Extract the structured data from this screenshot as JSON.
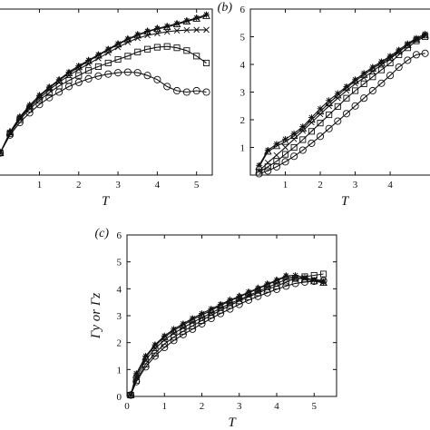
{
  "chart_data": [
    {
      "id": "a",
      "type": "line",
      "panel_label": "",
      "xlabel": "T",
      "ylabel": "",
      "xlim": [
        0,
        5.4
      ],
      "ylim": [
        0,
        6
      ],
      "xticks": [
        "1",
        "2",
        "3",
        "4",
        "5"
      ],
      "yticks": [],
      "grid": false,
      "series": [
        {
          "marker": "circle",
          "x": [
            0,
            0.25,
            0.5,
            0.75,
            1.0,
            1.25,
            1.5,
            1.75,
            2.0,
            2.25,
            2.5,
            2.75,
            3.0,
            3.25,
            3.5,
            3.75,
            4.0,
            4.25,
            4.5,
            4.75,
            5.0,
            5.25
          ],
          "y": [
            0.8,
            1.45,
            1.9,
            2.25,
            2.55,
            2.8,
            3.0,
            3.2,
            3.35,
            3.48,
            3.58,
            3.65,
            3.7,
            3.72,
            3.7,
            3.6,
            3.45,
            3.2,
            3.05,
            3.0,
            3.05,
            3.0
          ]
        },
        {
          "marker": "square",
          "x": [
            0,
            0.25,
            0.5,
            0.75,
            1.0,
            1.25,
            1.5,
            1.75,
            2.0,
            2.25,
            2.5,
            2.75,
            3.0,
            3.25,
            3.5,
            3.75,
            4.0,
            4.25,
            4.5,
            4.75,
            5.0,
            5.25
          ],
          "y": [
            0.8,
            1.5,
            2.0,
            2.38,
            2.7,
            2.98,
            3.22,
            3.42,
            3.6,
            3.78,
            3.92,
            4.05,
            4.18,
            4.3,
            4.45,
            4.55,
            4.62,
            4.65,
            4.6,
            4.5,
            4.3,
            4.05
          ]
        },
        {
          "marker": "cross",
          "x": [
            0,
            0.25,
            0.5,
            0.75,
            1.0,
            1.25,
            1.5,
            1.75,
            2.0,
            2.25,
            2.5,
            2.75,
            3.0,
            3.25,
            3.5,
            3.75,
            4.0,
            4.25,
            4.5,
            4.75,
            5.0,
            5.25
          ],
          "y": [
            0.8,
            1.52,
            2.05,
            2.45,
            2.78,
            3.08,
            3.35,
            3.6,
            3.82,
            4.02,
            4.22,
            4.42,
            4.62,
            4.8,
            4.95,
            5.05,
            5.12,
            5.18,
            5.22,
            5.24,
            5.25,
            5.25
          ]
        },
        {
          "marker": "triangle",
          "x": [
            0,
            0.25,
            0.5,
            0.75,
            1.0,
            1.25,
            1.5,
            1.75,
            2.0,
            2.25,
            2.5,
            2.75,
            3.0,
            3.25,
            3.5,
            3.75,
            4.0,
            4.25,
            4.5,
            4.75,
            5.0,
            5.25
          ],
          "y": [
            0.8,
            1.55,
            2.08,
            2.5,
            2.85,
            3.15,
            3.42,
            3.68,
            3.9,
            4.12,
            4.32,
            4.52,
            4.72,
            4.9,
            5.05,
            5.18,
            5.28,
            5.35,
            5.45,
            5.55,
            5.65,
            5.75
          ]
        },
        {
          "marker": "star",
          "x": [
            0,
            0.25,
            0.5,
            0.75,
            1.0,
            1.25,
            1.5,
            1.75,
            2.0,
            2.25,
            2.5,
            2.75,
            3.0,
            3.25,
            3.5,
            3.75,
            4.0,
            4.25,
            4.5,
            4.75,
            5.0,
            5.25
          ],
          "y": [
            0.8,
            1.55,
            2.1,
            2.52,
            2.88,
            3.18,
            3.45,
            3.72,
            3.95,
            4.15,
            4.35,
            4.55,
            4.75,
            4.92,
            5.08,
            5.2,
            5.3,
            5.38,
            5.48,
            5.58,
            5.68,
            5.8
          ]
        }
      ]
    },
    {
      "id": "b",
      "type": "line",
      "panel_label": "(b)",
      "xlabel": "T",
      "ylabel": "",
      "xlim": [
        0,
        5.4
      ],
      "ylim": [
        0,
        6
      ],
      "xticks": [
        "1",
        "2",
        "3",
        "4"
      ],
      "yticks": [
        "1",
        "2",
        "3",
        "4",
        "5",
        "6"
      ],
      "grid": false,
      "series": [
        {
          "marker": "circle",
          "x": [
            0.25,
            0.5,
            0.75,
            1.0,
            1.25,
            1.5,
            1.75,
            2.0,
            2.25,
            2.5,
            2.75,
            3.0,
            3.25,
            3.5,
            3.75,
            4.0,
            4.25,
            4.5,
            4.75,
            5.0
          ],
          "y": [
            0.05,
            0.15,
            0.3,
            0.48,
            0.68,
            0.9,
            1.15,
            1.4,
            1.68,
            1.95,
            2.22,
            2.5,
            2.78,
            3.05,
            3.32,
            3.6,
            3.9,
            4.15,
            4.35,
            4.4
          ]
        },
        {
          "marker": "square",
          "x": [
            0.25,
            0.5,
            0.75,
            1.0,
            1.25,
            1.5,
            1.75,
            2.0,
            2.25,
            2.5,
            2.75,
            3.0,
            3.25,
            3.5,
            3.75,
            4.0,
            4.25,
            4.5,
            4.75,
            5.0
          ],
          "y": [
            0.1,
            0.3,
            0.5,
            0.75,
            1.0,
            1.28,
            1.58,
            1.88,
            2.18,
            2.48,
            2.78,
            3.05,
            3.3,
            3.55,
            3.8,
            4.05,
            4.35,
            4.6,
            4.85,
            5.0
          ]
        },
        {
          "marker": "cross",
          "x": [
            0.25,
            0.5,
            0.75,
            1.0,
            1.25,
            1.5,
            1.75,
            2.0,
            2.25,
            2.5,
            2.75,
            3.0,
            3.25,
            3.5,
            3.75,
            4.0,
            4.25,
            4.5,
            4.75,
            5.0
          ],
          "y": [
            0.15,
            0.45,
            0.72,
            1.0,
            1.3,
            1.6,
            1.9,
            2.2,
            2.5,
            2.78,
            3.05,
            3.3,
            3.52,
            3.75,
            3.98,
            4.2,
            4.45,
            4.7,
            4.9,
            5.05
          ]
        },
        {
          "marker": "triangle",
          "x": [
            0.25,
            0.5,
            0.75,
            1.0,
            1.25,
            1.5,
            1.75,
            2.0,
            2.25,
            2.5,
            2.75,
            3.0,
            3.25,
            3.5,
            3.75,
            4.0,
            4.25,
            4.5,
            4.75,
            5.0
          ],
          "y": [
            0.3,
            0.85,
            1.05,
            1.2,
            1.42,
            1.68,
            2.0,
            2.3,
            2.6,
            2.88,
            3.15,
            3.4,
            3.62,
            3.85,
            4.05,
            4.25,
            4.48,
            4.7,
            4.9,
            5.05
          ]
        },
        {
          "marker": "star",
          "x": [
            0.25,
            0.5,
            0.75,
            1.0,
            1.25,
            1.5,
            1.75,
            2.0,
            2.25,
            2.5,
            2.75,
            3.0,
            3.25,
            3.5,
            3.75,
            4.0,
            4.25,
            4.5,
            4.75,
            5.0
          ],
          "y": [
            0.35,
            0.9,
            1.12,
            1.3,
            1.5,
            1.75,
            2.08,
            2.4,
            2.7,
            2.95,
            3.2,
            3.45,
            3.68,
            3.9,
            4.1,
            4.3,
            4.52,
            4.75,
            4.95,
            5.1
          ]
        }
      ]
    },
    {
      "id": "c",
      "type": "line",
      "panel_label": "(c)",
      "xlabel": "T",
      "ylabel": "Γy or Γz",
      "xlim": [
        0,
        5.6
      ],
      "ylim": [
        0,
        6
      ],
      "xticks": [
        "0",
        "1",
        "2",
        "3",
        "4",
        "5"
      ],
      "yticks": [
        "0",
        "1",
        "2",
        "3",
        "4",
        "5",
        "6"
      ],
      "grid": false,
      "series": [
        {
          "marker": "circle",
          "x": [
            0.1,
            0.25,
            0.5,
            0.75,
            1.0,
            1.25,
            1.5,
            1.75,
            2.0,
            2.25,
            2.5,
            2.75,
            3.0,
            3.25,
            3.5,
            3.75,
            4.0,
            4.25,
            4.5,
            4.75,
            5.0,
            5.25
          ],
          "y": [
            0.05,
            0.55,
            1.1,
            1.5,
            1.82,
            2.08,
            2.3,
            2.5,
            2.7,
            2.9,
            3.08,
            3.25,
            3.42,
            3.58,
            3.72,
            3.85,
            3.98,
            4.1,
            4.2,
            4.25,
            4.28,
            4.3
          ]
        },
        {
          "marker": "square",
          "x": [
            0.1,
            0.25,
            0.5,
            0.75,
            1.0,
            1.25,
            1.5,
            1.75,
            2.0,
            2.25,
            2.5,
            2.75,
            3.0,
            3.25,
            3.5,
            3.75,
            4.0,
            4.25,
            4.5,
            4.75,
            5.0,
            5.25
          ],
          "y": [
            0.05,
            0.6,
            1.2,
            1.6,
            1.95,
            2.2,
            2.42,
            2.62,
            2.82,
            3.02,
            3.2,
            3.38,
            3.55,
            3.7,
            3.85,
            3.98,
            4.1,
            4.25,
            4.38,
            4.45,
            4.5,
            4.55
          ]
        },
        {
          "marker": "cross",
          "x": [
            0.1,
            0.25,
            0.5,
            0.75,
            1.0,
            1.25,
            1.5,
            1.75,
            2.0,
            2.25,
            2.5,
            2.75,
            3.0,
            3.25,
            3.5,
            3.75,
            4.0,
            4.25,
            4.5,
            4.75,
            5.0,
            5.25
          ],
          "y": [
            0.05,
            0.7,
            1.35,
            1.78,
            2.1,
            2.35,
            2.55,
            2.75,
            2.92,
            3.1,
            3.28,
            3.45,
            3.6,
            3.75,
            3.9,
            4.05,
            4.2,
            4.35,
            4.4,
            4.38,
            4.35,
            4.3
          ]
        },
        {
          "marker": "triangle",
          "x": [
            0.1,
            0.25,
            0.5,
            0.75,
            1.0,
            1.25,
            1.5,
            1.75,
            2.0,
            2.25,
            2.5,
            2.75,
            3.0,
            3.25,
            3.5,
            3.75,
            4.0,
            4.25,
            4.5,
            4.75,
            5.0,
            5.25
          ],
          "y": [
            0.05,
            0.8,
            1.45,
            1.88,
            2.2,
            2.45,
            2.65,
            2.85,
            3.02,
            3.2,
            3.38,
            3.55,
            3.7,
            3.85,
            4.0,
            4.15,
            4.3,
            4.45,
            4.42,
            4.35,
            4.28,
            4.22
          ]
        },
        {
          "marker": "star",
          "x": [
            0.1,
            0.25,
            0.5,
            0.75,
            1.0,
            1.25,
            1.5,
            1.75,
            2.0,
            2.25,
            2.5,
            2.75,
            3.0,
            3.25,
            3.5,
            3.75,
            4.0,
            4.25,
            4.5,
            4.75,
            5.0,
            5.25
          ],
          "y": [
            0.05,
            0.85,
            1.5,
            1.92,
            2.25,
            2.5,
            2.7,
            2.9,
            3.08,
            3.25,
            3.42,
            3.58,
            3.72,
            3.88,
            4.02,
            4.18,
            4.32,
            4.48,
            4.5,
            4.42,
            4.32,
            4.25
          ]
        }
      ]
    }
  ]
}
